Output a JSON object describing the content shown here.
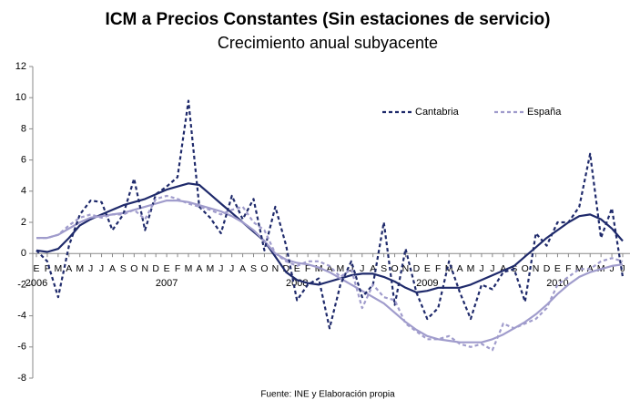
{
  "chart_data": {
    "type": "line",
    "title": "ICM a Precios Constantes (Sin estaciones de servicio)",
    "subtitle": "Crecimiento anual subyacente",
    "source": "Fuente: INE y Elaboración propia",
    "categories": [
      "E",
      "F",
      "M",
      "A",
      "M",
      "J",
      "J",
      "A",
      "S",
      "O",
      "N",
      "D",
      "E",
      "F",
      "M",
      "A",
      "M",
      "J",
      "J",
      "A",
      "S",
      "O",
      "N",
      "D",
      "E",
      "F",
      "M",
      "A",
      "M",
      "J",
      "J",
      "A",
      "S",
      "O",
      "N",
      "D",
      "E",
      "F",
      "M",
      "A",
      "M",
      "J",
      "J",
      "A",
      "S",
      "O",
      "N",
      "D",
      "E",
      "F",
      "M",
      "A",
      "M",
      "J",
      "J"
    ],
    "year_labels": [
      "2006",
      null,
      null,
      null,
      null,
      null,
      null,
      null,
      null,
      null,
      null,
      null,
      "2007",
      null,
      null,
      null,
      null,
      null,
      null,
      null,
      null,
      null,
      null,
      null,
      "2008",
      null,
      null,
      null,
      null,
      null,
      null,
      null,
      null,
      null,
      null,
      null,
      "2009",
      null,
      null,
      null,
      null,
      null,
      null,
      null,
      null,
      null,
      null,
      null,
      "2010",
      null,
      null,
      null,
      null,
      null,
      null
    ],
    "ylim": [
      -8,
      12
    ],
    "yticks": [
      -8,
      -6,
      -4,
      -2,
      0,
      2,
      4,
      6,
      8,
      10,
      12
    ],
    "grid": false,
    "legend": "upper right",
    "series": [
      {
        "name": "Cantabria",
        "color": "#1f2a6b",
        "dashed": true,
        "values": [
          0.2,
          -0.5,
          -2.8,
          0.5,
          2.5,
          3.4,
          3.3,
          1.5,
          2.5,
          4.8,
          1.5,
          3.8,
          4.3,
          4.9,
          9.8,
          3.0,
          2.3,
          1.3,
          3.7,
          2.2,
          3.5,
          0.2,
          3.0,
          0.5,
          -3.0,
          -2.0,
          -1.6,
          -4.8,
          -2.0,
          -0.5,
          -2.8,
          -2.0,
          2.0,
          -3.3,
          0.3,
          -2.5,
          -4.2,
          -3.5,
          -0.5,
          -2.5,
          -4.2,
          -2.0,
          -2.3,
          -1.2,
          -1.0,
          -3.1,
          1.3,
          0.5,
          2.0,
          2.0,
          3.0,
          6.4,
          1.0,
          2.9,
          -1.5
        ]
      },
      {
        "name": "España",
        "color": "#a09ccc",
        "dashed": true,
        "values": [
          1.0,
          1.0,
          1.2,
          1.8,
          2.3,
          2.5,
          2.3,
          2.5,
          2.5,
          2.8,
          2.2,
          3.5,
          3.7,
          3.5,
          3.2,
          3.0,
          2.8,
          2.5,
          2.8,
          3.0,
          2.0,
          1.5,
          0.0,
          -0.5,
          -0.8,
          -0.5,
          -0.5,
          -0.8,
          -1.5,
          -1.0,
          -3.5,
          -2.0,
          -2.8,
          -3.0,
          -4.5,
          -5.0,
          -5.5,
          -5.5,
          -5.3,
          -5.8,
          -6.0,
          -5.8,
          -6.2,
          -4.5,
          -4.8,
          -4.5,
          -4.2,
          -3.5,
          -2.0,
          -1.5,
          -1.0,
          -1.0,
          -0.5,
          -0.3,
          -0.5
        ]
      },
      {
        "color": "#1f2a6b",
        "dashed": false,
        "values": [
          0.2,
          0.1,
          0.3,
          1.0,
          1.8,
          2.2,
          2.5,
          2.8,
          3.1,
          3.3,
          3.5,
          3.8,
          4.1,
          4.3,
          4.5,
          4.4,
          3.8,
          3.2,
          2.6,
          2.0,
          1.4,
          0.8,
          -0.2,
          -1.2,
          -1.7,
          -1.9,
          -2.0,
          -1.8,
          -1.6,
          -1.4,
          -1.3,
          -1.3,
          -1.5,
          -1.8,
          -2.2,
          -2.5,
          -2.4,
          -2.2,
          -2.2,
          -2.2,
          -2.0,
          -1.7,
          -1.4,
          -1.1,
          -0.8,
          -0.2,
          0.4,
          1.0,
          1.5,
          2.0,
          2.4,
          2.5,
          2.2,
          1.6,
          0.8
        ]
      },
      {
        "color": "#a09ccc",
        "dashed": false,
        "values": [
          1.0,
          1.0,
          1.2,
          1.6,
          2.0,
          2.3,
          2.4,
          2.5,
          2.6,
          2.8,
          3.0,
          3.2,
          3.4,
          3.4,
          3.3,
          3.1,
          2.9,
          2.7,
          2.4,
          2.0,
          1.5,
          0.8,
          0.0,
          -0.4,
          -0.6,
          -0.7,
          -0.9,
          -1.2,
          -1.6,
          -2.0,
          -2.4,
          -2.8,
          -3.2,
          -3.8,
          -4.4,
          -4.9,
          -5.3,
          -5.5,
          -5.6,
          -5.7,
          -5.7,
          -5.7,
          -5.5,
          -5.2,
          -4.8,
          -4.4,
          -3.9,
          -3.3,
          -2.6,
          -2.0,
          -1.5,
          -1.2,
          -1.0,
          -0.8,
          -0.7
        ]
      }
    ]
  }
}
